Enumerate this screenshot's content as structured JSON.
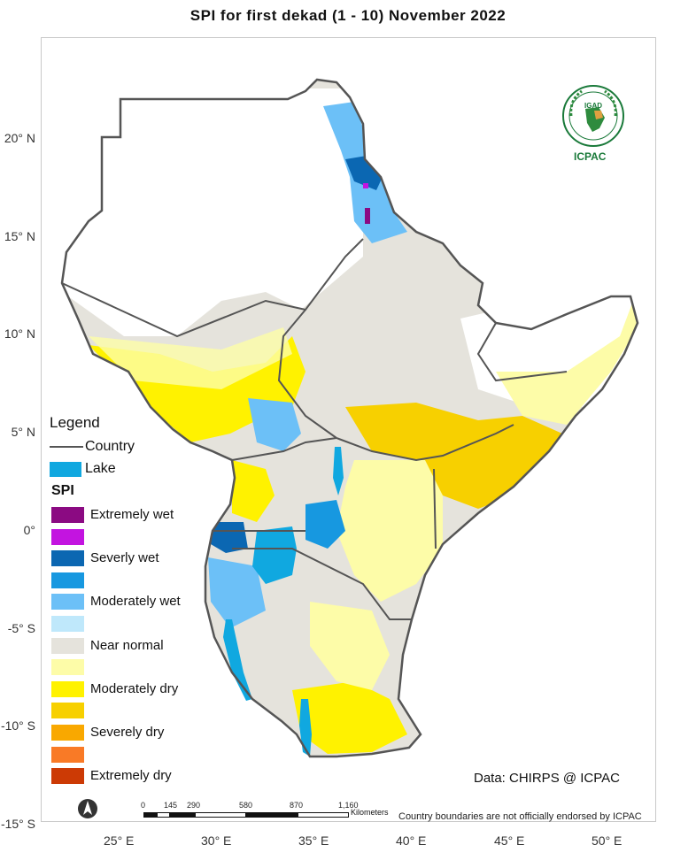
{
  "title": "SPI   for     first  dekad (1 - 10)  November 2022",
  "y_axis": [
    "20° N",
    "15° N",
    "10° N",
    "5° N",
    "0°",
    "-5° S",
    "-10° S",
    "-15° S"
  ],
  "x_axis": [
    "25° E",
    "30° E",
    "35° E",
    "40° E",
    "45° E",
    "50° E"
  ],
  "legend": {
    "title": "Legend",
    "country_label": "Country",
    "lake_label": "Lake",
    "spi_title": "SPI",
    "classes": [
      {
        "label": "Extremely wet",
        "color": "#8b0a82"
      },
      {
        "label": "",
        "color": "#c314e0"
      },
      {
        "label": "Severly wet",
        "color": "#0b67b2"
      },
      {
        "label": "",
        "color": "#1798e0"
      },
      {
        "label": "Moderately wet",
        "color": "#6cc0f7"
      },
      {
        "label": "",
        "color": "#bfe8fb"
      },
      {
        "label": "Near normal",
        "color": "#e5e3dc"
      },
      {
        "label": "",
        "color": "#fdfca8"
      },
      {
        "label": "Moderately dry",
        "color": "#fff200"
      },
      {
        "label": "",
        "color": "#f7d000"
      },
      {
        "label": "Severely dry",
        "color": "#f9a800"
      },
      {
        "label": "",
        "color": "#f97a26"
      },
      {
        "label": "Extremely dry",
        "color": "#cc3a05"
      }
    ]
  },
  "logo": {
    "name": "IGAD",
    "org": "ICPAC"
  },
  "source": "Data: CHIRPS @ ICPAC",
  "scale_bar": {
    "ticks": [
      "0",
      "145",
      "290",
      "580",
      "870",
      "1,160"
    ],
    "units": "Kilometers"
  },
  "disclaimer": "Country boundaries are not officially endorsed by ICPAC"
}
